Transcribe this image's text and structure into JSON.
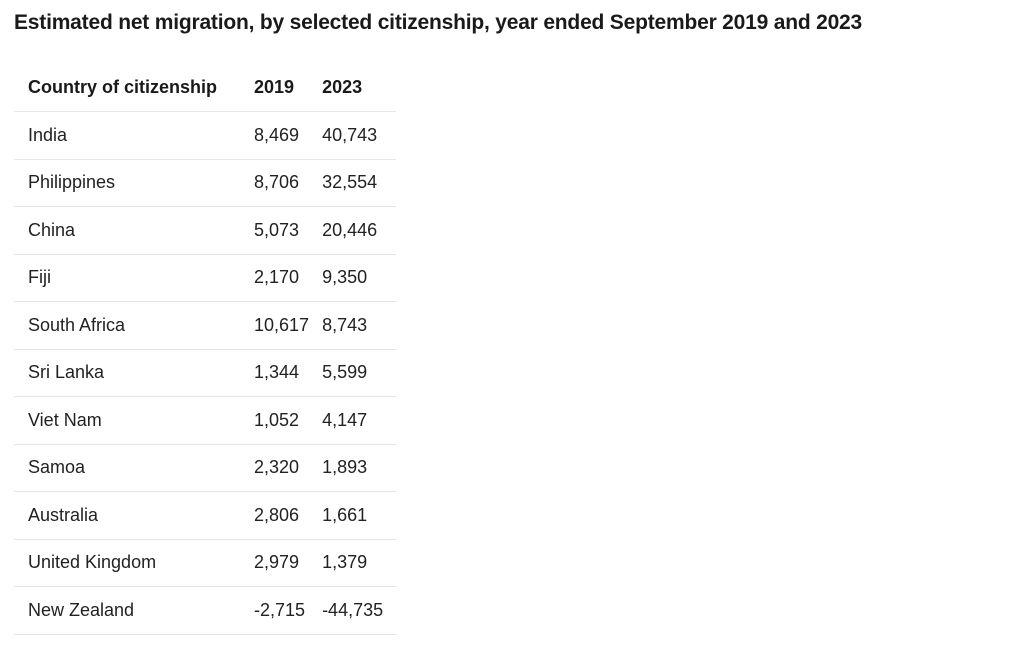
{
  "title": "Estimated net migration, by selected citizenship, year ended September 2019 and 2023",
  "table": {
    "headers": [
      "Country of citizenship",
      "2019",
      "2023"
    ],
    "rows": [
      [
        "India",
        "8,469",
        "40,743"
      ],
      [
        "Philippines",
        "8,706",
        "32,554"
      ],
      [
        "China",
        "5,073",
        "20,446"
      ],
      [
        "Fiji",
        "2,170",
        "9,350"
      ],
      [
        "South Africa",
        "10,617",
        "8,743"
      ],
      [
        "Sri Lanka",
        "1,344",
        "5,599"
      ],
      [
        "Viet Nam",
        "1,052",
        "4,147"
      ],
      [
        "Samoa",
        "2,320",
        "1,893"
      ],
      [
        "Australia",
        "2,806",
        "1,661"
      ],
      [
        "United Kingdom",
        "2,979",
        "1,379"
      ],
      [
        "New Zealand",
        "-2,715",
        "-44,735"
      ]
    ]
  },
  "chart_data": {
    "type": "table",
    "title": "Estimated net migration, by selected citizenship, year ended September 2019 and 2023",
    "categories": [
      "India",
      "Philippines",
      "China",
      "Fiji",
      "South Africa",
      "Sri Lanka",
      "Viet Nam",
      "Samoa",
      "Australia",
      "United Kingdom",
      "New Zealand"
    ],
    "series": [
      {
        "name": "2019",
        "values": [
          8469,
          8706,
          5073,
          2170,
          10617,
          1344,
          1052,
          2320,
          2806,
          2979,
          -2715
        ]
      },
      {
        "name": "2023",
        "values": [
          40743,
          32554,
          20446,
          9350,
          8743,
          5599,
          4147,
          1893,
          1661,
          1379,
          -44735
        ]
      }
    ]
  }
}
